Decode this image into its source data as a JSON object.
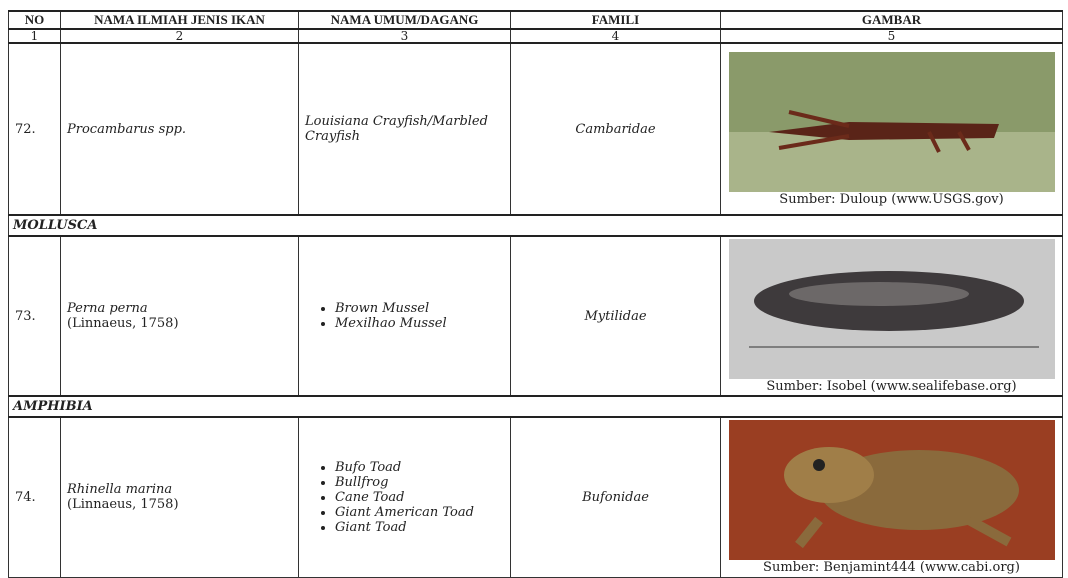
{
  "table": {
    "header": [
      "NO",
      "NAMA ILMIAH JENIS IKAN",
      "NAMA UMUM/DAGANG",
      "FAMILI",
      "GAMBAR"
    ],
    "column_numbers": [
      1,
      2,
      3,
      4,
      5
    ],
    "rows": [
      {
        "no": "72.",
        "scientific_name": "Procambarus spp.",
        "common_name": "Louisiana Crayfish/Marbled Crayfish",
        "family": "Cambaridae",
        "image_caption": "Sumber: Duloup (www.USGS.gov)"
      },
      {
        "group": "MOLLUSCA"
      },
      {
        "no": "73.",
        "scientific_name": "Perna perna",
        "author": "(Linnaeus, 1758)",
        "common_names": [
          "Brown Mussel",
          "Mexilhao Mussel"
        ],
        "family": "Mytilidae",
        "image_caption": "Sumber: Isobel (www.sealifebase.org)"
      },
      {
        "group": "AMPHIBIA"
      },
      {
        "no": "74.",
        "scientific_name": "Rhinella marina",
        "author": "(Linnaeus, 1758)",
        "common_names": [
          "Bufo Toad",
          "Bullfrog",
          "Cane Toad",
          "Giant American Toad",
          "Giant Toad"
        ],
        "family": "Bufonidae",
        "image_caption": "Sumber: Benjamint444 (www.cabi.org)"
      }
    ]
  }
}
